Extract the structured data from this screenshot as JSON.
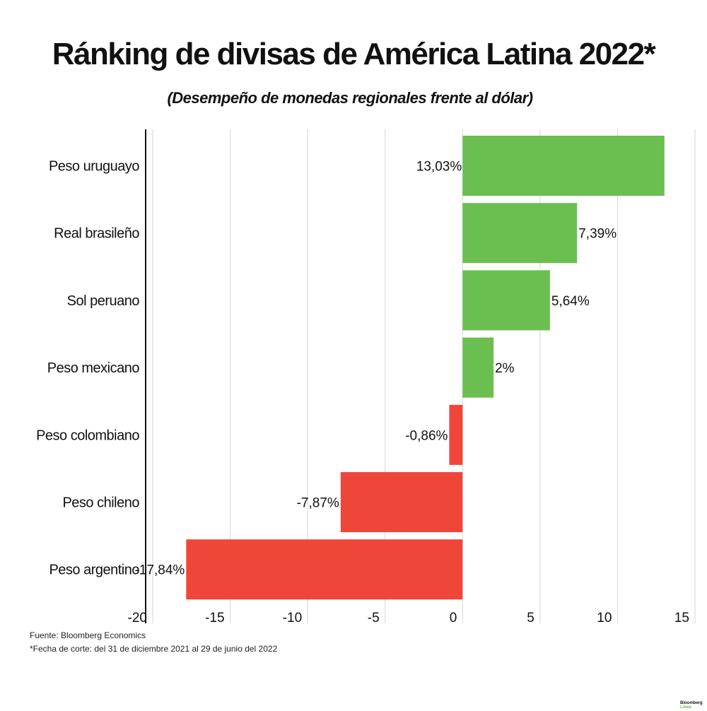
{
  "title": "Ránking de divisas de América Latina 2022*",
  "subtitle": "(Desempeño de monedas regionales frente al dólar)",
  "source": "Fuente: Bloomberg Economics",
  "note": "*Fecha de corte: del 31 de diciembre 2021 al 29 de junio del 2022",
  "logo": {
    "line1": "Bloomberg",
    "line2": "Línea"
  },
  "chart_data": {
    "type": "bar",
    "orientation": "horizontal",
    "categories": [
      "Peso uruguayo",
      "Real brasileño",
      "Sol peruano",
      "Peso mexicano",
      "Peso colombiano",
      "Peso chileno",
      "Peso argentino"
    ],
    "values": [
      13.03,
      7.39,
      5.64,
      2,
      -0.86,
      -7.87,
      -17.84
    ],
    "labels": [
      "13,03%",
      "7,39%",
      "5,64%",
      "2%",
      "-0,86%",
      "-7,87%",
      "-17,84%"
    ],
    "xlim": [
      -20,
      15
    ],
    "xticks": [
      -20,
      -15,
      -10,
      -5,
      0,
      5,
      10,
      15
    ],
    "xtick_labels": [
      "-20",
      "-15",
      "-10",
      "-5",
      "0",
      "5",
      "10",
      "15"
    ],
    "grid": true,
    "colors": {
      "positive": "#6abf50",
      "negative": "#ef463a",
      "grid": "#d6d6d6",
      "axis": "#111111"
    }
  }
}
